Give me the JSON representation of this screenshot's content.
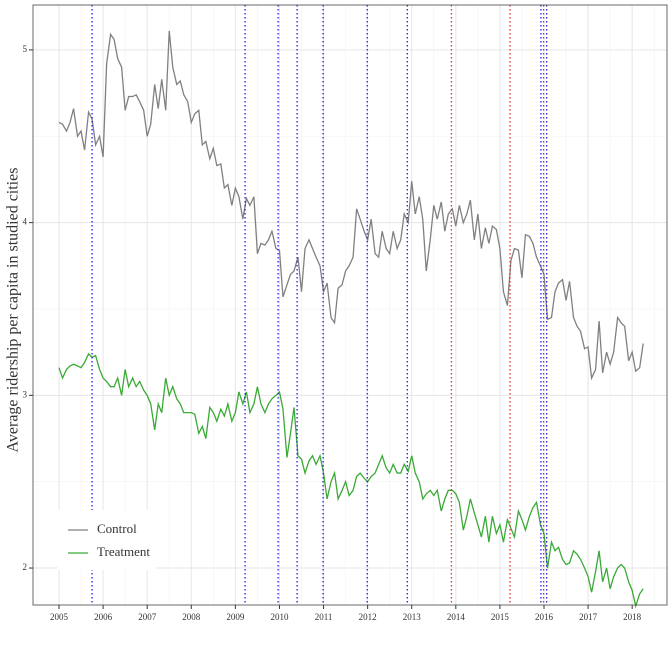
{
  "chart_data": {
    "type": "line",
    "ylabel": "Average ridership per capita in studied cities",
    "xlim": [
      2004.41,
      2018.79
    ],
    "ylim": [
      1.786,
      5.26
    ],
    "xticks": [
      2005,
      2006,
      2007,
      2008,
      2009,
      2010,
      2011,
      2012,
      2013,
      2014,
      2015,
      2016,
      2017,
      2018
    ],
    "yticks": [
      2,
      3,
      4,
      5
    ],
    "xminor": [
      2004.5,
      2005.5,
      2006.5,
      2007.5,
      2008.5,
      2009.5,
      2010.5,
      2011.5,
      2012.5,
      2013.5,
      2014.5,
      2015.5,
      2016.5,
      2017.5,
      2018.5
    ],
    "yminor": [
      2.5,
      3.5,
      4.5
    ],
    "grid": true,
    "legend": "bottom-left",
    "x": [
      2005,
      2005.08,
      2005.17,
      2005.25,
      2005.33,
      2005.42,
      2005.5,
      2005.58,
      2005.67,
      2005.75,
      2005.83,
      2005.92,
      2006,
      2006.08,
      2006.17,
      2006.25,
      2006.33,
      2006.42,
      2006.5,
      2006.58,
      2006.67,
      2006.75,
      2006.83,
      2006.92,
      2007,
      2007.08,
      2007.17,
      2007.25,
      2007.33,
      2007.42,
      2007.5,
      2007.58,
      2007.67,
      2007.75,
      2007.83,
      2007.92,
      2008,
      2008.08,
      2008.17,
      2008.25,
      2008.33,
      2008.42,
      2008.5,
      2008.58,
      2008.67,
      2008.75,
      2008.83,
      2008.92,
      2009,
      2009.08,
      2009.17,
      2009.25,
      2009.33,
      2009.42,
      2009.5,
      2009.58,
      2009.67,
      2009.75,
      2009.83,
      2009.92,
      2010,
      2010.08,
      2010.17,
      2010.25,
      2010.33,
      2010.42,
      2010.5,
      2010.58,
      2010.67,
      2010.75,
      2010.83,
      2010.92,
      2011,
      2011.08,
      2011.17,
      2011.25,
      2011.33,
      2011.42,
      2011.5,
      2011.58,
      2011.67,
      2011.75,
      2011.83,
      2011.92,
      2012,
      2012.08,
      2012.17,
      2012.25,
      2012.33,
      2012.42,
      2012.5,
      2012.58,
      2012.67,
      2012.75,
      2012.83,
      2012.92,
      2013,
      2013.08,
      2013.17,
      2013.25,
      2013.33,
      2013.42,
      2013.5,
      2013.58,
      2013.67,
      2013.75,
      2013.83,
      2013.92,
      2014,
      2014.08,
      2014.17,
      2014.25,
      2014.33,
      2014.42,
      2014.5,
      2014.58,
      2014.67,
      2014.75,
      2014.83,
      2014.92,
      2015,
      2015.08,
      2015.17,
      2015.25,
      2015.33,
      2015.42,
      2015.5,
      2015.58,
      2015.67,
      2015.75,
      2015.83,
      2015.92,
      2016,
      2016.08,
      2016.17,
      2016.25,
      2016.33,
      2016.42,
      2016.5,
      2016.58,
      2016.67,
      2016.75,
      2016.83,
      2016.92,
      2017,
      2017.08,
      2017.17,
      2017.25,
      2017.33,
      2017.42,
      2017.5,
      2017.58,
      2017.67,
      2017.75,
      2017.83,
      2017.92,
      2018,
      2018.08,
      2018.17,
      2018.25
    ],
    "series": [
      {
        "name": "Control",
        "color": "#808080",
        "values": [
          4.58,
          4.57,
          4.53,
          4.58,
          4.66,
          4.5,
          4.53,
          4.42,
          4.64,
          4.6,
          4.45,
          4.5,
          4.38,
          4.92,
          5.09,
          5.06,
          4.95,
          4.9,
          4.65,
          4.73,
          4.73,
          4.74,
          4.7,
          4.65,
          4.5,
          4.57,
          4.8,
          4.66,
          4.83,
          4.65,
          5.11,
          4.9,
          4.8,
          4.82,
          4.74,
          4.7,
          4.58,
          4.63,
          4.65,
          4.45,
          4.47,
          4.37,
          4.43,
          4.33,
          4.34,
          4.2,
          4.22,
          4.1,
          4.2,
          4.15,
          4.02,
          4.14,
          4.1,
          4.15,
          3.82,
          3.88,
          3.87,
          3.9,
          3.95,
          3.85,
          3.84,
          3.57,
          3.64,
          3.7,
          3.72,
          3.8,
          3.6,
          3.85,
          3.9,
          3.85,
          3.8,
          3.75,
          3.6,
          3.65,
          3.45,
          3.42,
          3.62,
          3.64,
          3.72,
          3.75,
          3.8,
          4.08,
          4.02,
          3.95,
          3.9,
          4.02,
          3.82,
          3.8,
          3.95,
          3.85,
          3.82,
          3.95,
          3.85,
          3.9,
          4.05,
          4.0,
          4.24,
          4.05,
          4.15,
          4.02,
          3.72,
          3.9,
          4.1,
          4.02,
          4.12,
          3.95,
          4.05,
          4.08,
          3.98,
          4.1,
          4.0,
          4.05,
          4.13,
          3.9,
          4.05,
          3.85,
          3.97,
          3.88,
          3.98,
          3.96,
          3.85,
          3.6,
          3.52,
          3.78,
          3.85,
          3.84,
          3.68,
          3.93,
          3.92,
          3.88,
          3.8,
          3.75,
          3.7,
          3.44,
          3.45,
          3.6,
          3.65,
          3.67,
          3.55,
          3.66,
          3.45,
          3.4,
          3.37,
          3.27,
          3.28,
          3.1,
          3.15,
          3.43,
          3.13,
          3.25,
          3.18,
          3.25,
          3.45,
          3.42,
          3.4,
          3.2,
          3.25,
          3.14,
          3.16,
          3.3
        ]
      },
      {
        "name": "Treatment",
        "color": "#3aaa35",
        "values": [
          3.16,
          3.1,
          3.15,
          3.17,
          3.18,
          3.17,
          3.16,
          3.19,
          3.24,
          3.22,
          3.23,
          3.15,
          3.1,
          3.08,
          3.05,
          3.05,
          3.1,
          3.0,
          3.15,
          3.05,
          3.1,
          3.05,
          3.08,
          3.03,
          3.0,
          2.95,
          2.8,
          2.95,
          2.9,
          3.1,
          3.0,
          3.05,
          2.98,
          2.95,
          2.9,
          2.9,
          2.9,
          2.89,
          2.78,
          2.82,
          2.75,
          2.93,
          2.9,
          2.85,
          2.92,
          2.88,
          2.95,
          2.85,
          2.9,
          3.02,
          2.95,
          3.02,
          2.9,
          2.95,
          3.05,
          2.95,
          2.9,
          2.95,
          2.98,
          3.0,
          3.02,
          2.92,
          2.64,
          2.78,
          2.93,
          2.65,
          2.63,
          2.55,
          2.62,
          2.65,
          2.6,
          2.65,
          2.55,
          2.4,
          2.5,
          2.55,
          2.4,
          2.45,
          2.5,
          2.42,
          2.45,
          2.53,
          2.55,
          2.52,
          2.5,
          2.53,
          2.55,
          2.6,
          2.65,
          2.58,
          2.55,
          2.6,
          2.55,
          2.55,
          2.6,
          2.56,
          2.65,
          2.55,
          2.5,
          2.4,
          2.43,
          2.45,
          2.42,
          2.45,
          2.33,
          2.4,
          2.45,
          2.45,
          2.43,
          2.38,
          2.22,
          2.3,
          2.4,
          2.32,
          2.25,
          2.18,
          2.3,
          2.15,
          2.3,
          2.2,
          2.25,
          2.15,
          2.28,
          2.23,
          2.18,
          2.33,
          2.28,
          2.22,
          2.3,
          2.35,
          2.38,
          2.25,
          2.2,
          2.0,
          2.15,
          2.1,
          2.12,
          2.05,
          2.02,
          2.03,
          2.1,
          2.08,
          2.05,
          2.0,
          1.95,
          1.86,
          1.98,
          2.1,
          1.92,
          2.0,
          1.88,
          1.95,
          2.0,
          2.02,
          2.0,
          1.92,
          1.87,
          1.78,
          1.85,
          1.88
        ]
      }
    ],
    "vlines": [
      {
        "x": 2005.75,
        "color": "#2222dd"
      },
      {
        "x": 2009.22,
        "color": "#2222dd"
      },
      {
        "x": 2009.97,
        "color": "#2222dd"
      },
      {
        "x": 2010.4,
        "color": "#2222dd"
      },
      {
        "x": 2010.99,
        "color": "#2222dd"
      },
      {
        "x": 2011.99,
        "color": "#2222dd"
      },
      {
        "x": 2012.9,
        "color": "#2222dd"
      },
      {
        "x": 2015.93,
        "color": "#2222dd"
      },
      {
        "x": 2016.06,
        "color": "#2222dd"
      },
      {
        "x": 2013.9,
        "color": "#dd3333"
      },
      {
        "x": 2015.23,
        "color": "#dd3333"
      },
      {
        "x": 2015.99,
        "color": "#dd3333"
      }
    ]
  }
}
